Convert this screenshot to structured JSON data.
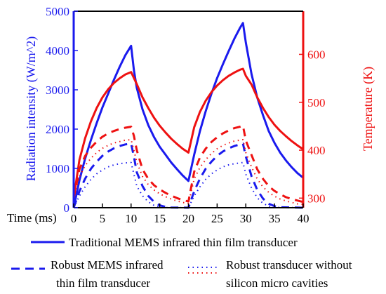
{
  "colors": {
    "blue": "#1a1aee",
    "red": "#ee1111",
    "black": "#000000"
  },
  "chart_data": {
    "type": "line",
    "xlabel": "Time (ms)",
    "ylabel_left": "Radiation intensity (W/m^2)",
    "ylabel_right": "Temperature (K)",
    "xlim": [
      0,
      40
    ],
    "ylim_left": [
      0,
      5000
    ],
    "ylim_right": [
      280,
      690
    ],
    "x_ticks": [
      "0",
      "5",
      "10",
      "15",
      "20",
      "25",
      "30",
      "35",
      "40"
    ],
    "y_ticks_left": [
      "0",
      "1000",
      "2000",
      "3000",
      "4000",
      "5000"
    ],
    "y_ticks_right": [
      "300",
      "400",
      "500",
      "600"
    ],
    "y_ticks_left_values": [
      0,
      1000,
      2000,
      3000,
      4000,
      5000
    ],
    "y_ticks_right_values": [
      300,
      400,
      500,
      600
    ],
    "x_ticks_values": [
      0,
      5,
      10,
      15,
      20,
      25,
      30,
      35,
      40
    ],
    "grid": false,
    "legend": [
      "Traditional MEMS infrared thin film transducer",
      [
        "Robust MEMS infrared",
        "thin film transducer"
      ],
      [
        "Robust transducer without",
        "silicon micro cavities"
      ]
    ],
    "series": [
      {
        "axis": "left",
        "color": "blue",
        "style": "solid",
        "points": [
          [
            0,
            0
          ],
          [
            1,
            700
          ],
          [
            2,
            1250
          ],
          [
            3,
            1720
          ],
          [
            4,
            2150
          ],
          [
            5,
            2550
          ],
          [
            6,
            2900
          ],
          [
            7,
            3250
          ],
          [
            8,
            3580
          ],
          [
            9,
            3880
          ],
          [
            10,
            4120
          ],
          [
            10.5,
            3500
          ],
          [
            11,
            3050
          ],
          [
            12,
            2500
          ],
          [
            13,
            2100
          ],
          [
            14,
            1800
          ],
          [
            15,
            1550
          ],
          [
            16,
            1350
          ],
          [
            17,
            1150
          ],
          [
            18,
            980
          ],
          [
            19,
            820
          ],
          [
            20,
            680
          ],
          [
            21,
            1350
          ],
          [
            22,
            1950
          ],
          [
            23,
            2450
          ],
          [
            24,
            2900
          ],
          [
            25,
            3300
          ],
          [
            26,
            3650
          ],
          [
            27,
            3980
          ],
          [
            28,
            4300
          ],
          [
            29,
            4580
          ],
          [
            29.5,
            4700
          ],
          [
            30,
            4200
          ],
          [
            31,
            3400
          ],
          [
            32,
            2800
          ],
          [
            33,
            2350
          ],
          [
            34,
            1950
          ],
          [
            35,
            1650
          ],
          [
            36,
            1400
          ],
          [
            37,
            1200
          ],
          [
            38,
            1030
          ],
          [
            39,
            880
          ],
          [
            40,
            760
          ]
        ]
      },
      {
        "axis": "left",
        "color": "blue",
        "style": "dashed",
        "points": [
          [
            0,
            0
          ],
          [
            1,
            420
          ],
          [
            2,
            740
          ],
          [
            3,
            990
          ],
          [
            4,
            1170
          ],
          [
            5,
            1320
          ],
          [
            6,
            1430
          ],
          [
            7,
            1510
          ],
          [
            8,
            1570
          ],
          [
            9,
            1610
          ],
          [
            10,
            1630
          ],
          [
            10.5,
            1300
          ],
          [
            11,
            900
          ],
          [
            12,
            550
          ],
          [
            13,
            300
          ],
          [
            14,
            150
          ],
          [
            15,
            60
          ],
          [
            16,
            20
          ],
          [
            17,
            5
          ],
          [
            20,
            0
          ],
          [
            21,
            420
          ],
          [
            22,
            740
          ],
          [
            23,
            990
          ],
          [
            24,
            1170
          ],
          [
            25,
            1320
          ],
          [
            26,
            1430
          ],
          [
            27,
            1510
          ],
          [
            28,
            1570
          ],
          [
            29,
            1610
          ],
          [
            29.5,
            1630
          ],
          [
            30,
            1300
          ],
          [
            31,
            800
          ],
          [
            32,
            450
          ],
          [
            33,
            230
          ],
          [
            34,
            100
          ],
          [
            35,
            40
          ],
          [
            36,
            10
          ],
          [
            40,
            0
          ]
        ]
      },
      {
        "axis": "left",
        "color": "blue",
        "style": "dotted",
        "points": [
          [
            0,
            0
          ],
          [
            1,
            300
          ],
          [
            2,
            530
          ],
          [
            3,
            720
          ],
          [
            4,
            860
          ],
          [
            5,
            960
          ],
          [
            6,
            1040
          ],
          [
            7,
            1090
          ],
          [
            8,
            1120
          ],
          [
            9,
            1140
          ],
          [
            10,
            1150
          ],
          [
            10.5,
            850
          ],
          [
            11,
            550
          ],
          [
            12,
            300
          ],
          [
            13,
            150
          ],
          [
            14,
            60
          ],
          [
            15,
            20
          ],
          [
            16,
            5
          ],
          [
            20,
            0
          ],
          [
            21,
            300
          ],
          [
            22,
            530
          ],
          [
            23,
            720
          ],
          [
            24,
            860
          ],
          [
            25,
            960
          ],
          [
            26,
            1040
          ],
          [
            27,
            1090
          ],
          [
            28,
            1120
          ],
          [
            29,
            1140
          ],
          [
            29.5,
            1150
          ],
          [
            30,
            850
          ],
          [
            31,
            500
          ],
          [
            32,
            250
          ],
          [
            33,
            110
          ],
          [
            34,
            40
          ],
          [
            35,
            10
          ],
          [
            40,
            0
          ]
        ]
      },
      {
        "axis": "right",
        "color": "red",
        "style": "solid",
        "points": [
          [
            0,
            300
          ],
          [
            1,
            380
          ],
          [
            2,
            425
          ],
          [
            3,
            460
          ],
          [
            4,
            488
          ],
          [
            5,
            510
          ],
          [
            6,
            527
          ],
          [
            7,
            540
          ],
          [
            8,
            550
          ],
          [
            9,
            558
          ],
          [
            10,
            563
          ],
          [
            11,
            538
          ],
          [
            12,
            510
          ],
          [
            13,
            488
          ],
          [
            14,
            468
          ],
          [
            15,
            451
          ],
          [
            16,
            437
          ],
          [
            17,
            424
          ],
          [
            18,
            413
          ],
          [
            19,
            403
          ],
          [
            20,
            395
          ],
          [
            21,
            448
          ],
          [
            22,
            480
          ],
          [
            23,
            503
          ],
          [
            24,
            521
          ],
          [
            25,
            535
          ],
          [
            26,
            546
          ],
          [
            27,
            555
          ],
          [
            28,
            562
          ],
          [
            29,
            568
          ],
          [
            29.5,
            570
          ],
          [
            30,
            555
          ],
          [
            31,
            537
          ],
          [
            32,
            510
          ],
          [
            33,
            488
          ],
          [
            34,
            469
          ],
          [
            35,
            453
          ],
          [
            36,
            440
          ],
          [
            37,
            429
          ],
          [
            38,
            419
          ],
          [
            39,
            410
          ],
          [
            40,
            402
          ]
        ]
      },
      {
        "axis": "right",
        "color": "red",
        "style": "dashed",
        "points": [
          [
            0,
            300
          ],
          [
            1,
            360
          ],
          [
            2,
            388
          ],
          [
            3,
            405
          ],
          [
            4,
            418
          ],
          [
            5,
            428
          ],
          [
            6,
            435
          ],
          [
            7,
            440
          ],
          [
            8,
            444
          ],
          [
            9,
            447
          ],
          [
            10,
            449
          ],
          [
            10.5,
            430
          ],
          [
            11,
            400
          ],
          [
            12,
            360
          ],
          [
            13,
            340
          ],
          [
            14,
            327
          ],
          [
            15,
            318
          ],
          [
            16,
            311
          ],
          [
            17,
            305
          ],
          [
            18,
            300
          ],
          [
            19,
            296
          ],
          [
            20,
            293
          ],
          [
            21,
            355
          ],
          [
            22,
            385
          ],
          [
            23,
            403
          ],
          [
            24,
            417
          ],
          [
            25,
            427
          ],
          [
            26,
            435
          ],
          [
            27,
            441
          ],
          [
            28,
            446
          ],
          [
            29,
            449
          ],
          [
            29.5,
            451
          ],
          [
            30,
            420
          ],
          [
            31,
            390
          ],
          [
            32,
            360
          ],
          [
            33,
            340
          ],
          [
            34,
            325
          ],
          [
            35,
            315
          ],
          [
            36,
            308
          ],
          [
            37,
            302
          ],
          [
            38,
            298
          ],
          [
            39,
            295
          ],
          [
            40,
            292
          ]
        ]
      },
      {
        "axis": "right",
        "color": "red",
        "style": "dotted",
        "points": [
          [
            0,
            300
          ],
          [
            1,
            345
          ],
          [
            2,
            368
          ],
          [
            3,
            383
          ],
          [
            4,
            395
          ],
          [
            5,
            404
          ],
          [
            6,
            410
          ],
          [
            7,
            415
          ],
          [
            8,
            418
          ],
          [
            9,
            421
          ],
          [
            10,
            422
          ],
          [
            10.5,
            400
          ],
          [
            11,
            375
          ],
          [
            12,
            345
          ],
          [
            13,
            328
          ],
          [
            14,
            317
          ],
          [
            15,
            309
          ],
          [
            16,
            303
          ],
          [
            17,
            298
          ],
          [
            18,
            294
          ],
          [
            19,
            291
          ],
          [
            20,
            289
          ],
          [
            21,
            340
          ],
          [
            22,
            364
          ],
          [
            23,
            380
          ],
          [
            24,
            393
          ],
          [
            25,
            403
          ],
          [
            26,
            410
          ],
          [
            27,
            415
          ],
          [
            28,
            419
          ],
          [
            29,
            421
          ],
          [
            29.5,
            422
          ],
          [
            30,
            395
          ],
          [
            31,
            365
          ],
          [
            32,
            340
          ],
          [
            33,
            323
          ],
          [
            34,
            312
          ],
          [
            35,
            304
          ],
          [
            36,
            298
          ],
          [
            37,
            294
          ],
          [
            38,
            291
          ],
          [
            39,
            288
          ],
          [
            40,
            287
          ]
        ]
      }
    ]
  }
}
